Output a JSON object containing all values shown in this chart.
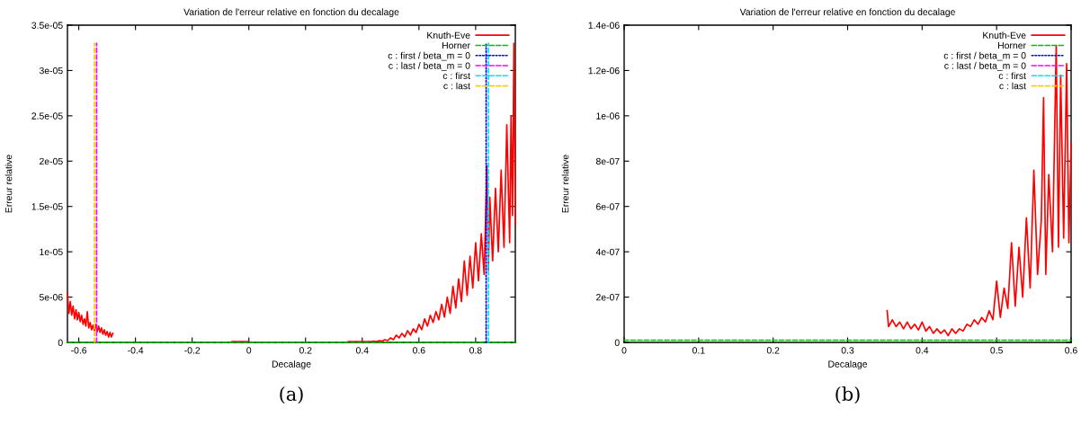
{
  "chart_data": [
    {
      "type": "line",
      "title": "Variation de l'erreur relative en fonction du decalage",
      "xlabel": "Decalage",
      "ylabel": "Erreur relative",
      "annotations": [
        "(a)"
      ],
      "legend": "top right",
      "grid": false,
      "xlim": [
        -0.64,
        0.94
      ],
      "xticks": [
        -0.6,
        -0.4,
        -0.2,
        0,
        0.2,
        0.4,
        0.6,
        0.8
      ],
      "ylim": [
        0,
        3.5e-05
      ],
      "yticks": [
        0,
        {
          "value": 5e-06,
          "label": "5e-06"
        },
        {
          "value": 1e-05,
          "label": "1e-05"
        },
        {
          "value": 1.5e-05,
          "label": "1.5e-05"
        },
        {
          "value": 2e-05,
          "label": "2e-05"
        },
        {
          "value": 2.5e-05,
          "label": "2.5e-05"
        },
        {
          "value": 3e-05,
          "label": "3e-05"
        },
        {
          "value": 3.5e-05,
          "label": "3.5e-05"
        }
      ],
      "series": [
        {
          "name": "Knuth-Eve",
          "color": "#ff0000",
          "line_style": "solid",
          "x": [
            -0.64,
            -0.635,
            -0.63,
            -0.625,
            -0.62,
            -0.615,
            -0.61,
            -0.605,
            -0.6,
            -0.595,
            -0.59,
            -0.585,
            -0.58,
            -0.575,
            -0.57,
            -0.565,
            -0.56,
            -0.555,
            -0.55,
            -0.545,
            -0.54,
            -0.535,
            -0.53,
            -0.525,
            -0.52,
            -0.515,
            -0.51,
            -0.505,
            -0.5,
            -0.495,
            -0.49,
            -0.485,
            -0.48,
            -0.47,
            -0.06,
            -0.04,
            -0.02,
            0,
            0.01,
            0.35,
            0.36,
            0.37,
            0.38,
            0.39,
            0.4,
            0.41,
            0.42,
            0.43,
            0.44,
            0.45,
            0.46,
            0.47,
            0.48,
            0.49,
            0.5,
            0.51,
            0.52,
            0.53,
            0.54,
            0.55,
            0.56,
            0.57,
            0.58,
            0.59,
            0.6,
            0.61,
            0.62,
            0.63,
            0.64,
            0.65,
            0.66,
            0.67,
            0.68,
            0.69,
            0.7,
            0.71,
            0.72,
            0.73,
            0.74,
            0.75,
            0.76,
            0.77,
            0.78,
            0.79,
            0.8,
            0.81,
            0.82,
            0.83,
            0.84,
            0.845,
            0.85,
            0.86,
            0.87,
            0.88,
            0.89,
            0.9,
            0.91,
            0.92,
            0.925,
            0.93,
            0.935,
            0.94
          ],
          "values": [
            5.5e-06,
            3.2e-06,
            4.5e-06,
            3e-06,
            4e-06,
            2.6e-06,
            3.6e-06,
            2.5e-06,
            3.3e-06,
            2.3e-06,
            3e-06,
            2e-06,
            2.6e-06,
            1.8e-06,
            3.4e-06,
            1.6e-06,
            2.2e-06,
            1.4e-06,
            1.9e-06,
            1.3e-06,
            2e-06,
            1.2e-06,
            1.8e-06,
            1.1e-06,
            1.6e-06,
            9e-07,
            1.4e-06,
            8e-07,
            1.2e-06,
            6e-07,
            1.1e-06,
            6e-07,
            1e-06,
            null,
            1e-07,
            1e-07,
            1e-07,
            1e-07,
            null,
            1e-07,
            1e-07,
            1e-07,
            1e-07,
            1e-07,
            1e-07,
            1e-07,
            1e-07,
            1e-07,
            1.5e-07,
            1e-07,
            2e-07,
            1.5e-07,
            3e-07,
            2e-07,
            5e-07,
            3e-07,
            8e-07,
            5e-07,
            1e-06,
            6e-07,
            1.3e-06,
            8e-07,
            1.5e-06,
            1.1e-06,
            2e-06,
            1.4e-06,
            2.6e-06,
            1.8e-06,
            3e-06,
            2.2e-06,
            3.4e-06,
            2.5e-06,
            4.2e-06,
            2.8e-06,
            5e-06,
            3.2e-06,
            6.2e-06,
            3.8e-06,
            7e-06,
            4.5e-06,
            9e-06,
            5.2e-06,
            9.5e-06,
            6e-06,
            1.1e-05,
            6.8e-06,
            1.2e-05,
            7.5e-06,
            1.95e-05,
            8e-06,
            1.6e-05,
            9e-06,
            1.7e-05,
            1e-05,
            1.9e-05,
            1.05e-05,
            2.4e-05,
            1.1e-05,
            2.5e-05,
            1.4e-05,
            3.3e-05,
            1.3e-05
          ]
        },
        {
          "name": "Horner",
          "color": "#00c000",
          "line_style": "dashed",
          "x": [
            -0.64,
            0.94
          ],
          "values": [
            0,
            0
          ]
        },
        {
          "name": "c : first / beta_m = 0",
          "color": "#0000ff",
          "line_style": "dotted",
          "x": [
            0.837,
            0.837
          ],
          "values": [
            0,
            3.3e-05
          ]
        },
        {
          "name": "c : last / beta_m = 0",
          "color": "#ff00ff",
          "line_style": "dashed",
          "x": [
            -0.537,
            -0.537
          ],
          "values": [
            0,
            3.3e-05
          ]
        },
        {
          "name": "c : first",
          "color": "#00e0ff",
          "line_style": "dashed",
          "x": [
            0.845,
            0.845
          ],
          "values": [
            0,
            3.3e-05
          ]
        },
        {
          "name": "c : last",
          "color": "#ffcc00",
          "line_style": "dashed",
          "x": [
            -0.545,
            -0.545
          ],
          "values": [
            0,
            3.3e-05
          ]
        }
      ]
    },
    {
      "type": "line",
      "title": "Variation de l'erreur relative en fonction du decalage",
      "xlabel": "Decalage",
      "ylabel": "Erreur relative",
      "annotations": [
        "(b)"
      ],
      "legend": "top right",
      "grid": false,
      "xlim": [
        0,
        0.6
      ],
      "xticks": [
        0,
        0.1,
        0.2,
        0.3,
        0.4,
        0.5,
        0.6
      ],
      "ylim": [
        0,
        1.4e-06
      ],
      "yticks": [
        0,
        {
          "value": 2e-07,
          "label": "2e-07"
        },
        {
          "value": 4e-07,
          "label": "4e-07"
        },
        {
          "value": 6e-07,
          "label": "6e-07"
        },
        {
          "value": 8e-07,
          "label": "8e-07"
        },
        {
          "value": 1e-06,
          "label": "1e-06"
        },
        {
          "value": 1.2e-06,
          "label": "1.2e-06"
        },
        {
          "value": 1.4e-06,
          "label": "1.4e-06"
        }
      ],
      "series": [
        {
          "name": "Knuth-Eve",
          "color": "#ff0000",
          "line_style": "solid",
          "x": [
            0.353,
            0.355,
            0.36,
            0.365,
            0.37,
            0.375,
            0.38,
            0.385,
            0.39,
            0.395,
            0.4,
            0.405,
            0.41,
            0.415,
            0.42,
            0.425,
            0.43,
            0.435,
            0.44,
            0.445,
            0.45,
            0.455,
            0.46,
            0.465,
            0.47,
            0.475,
            0.48,
            0.485,
            0.49,
            0.495,
            0.5,
            0.505,
            0.51,
            0.515,
            0.52,
            0.525,
            0.53,
            0.535,
            0.54,
            0.545,
            0.55,
            0.555,
            0.56,
            0.563,
            0.566,
            0.57,
            0.575,
            0.58,
            0.583,
            0.586,
            0.59,
            0.594,
            0.597,
            0.6
          ],
          "values": [
            1.4e-07,
            7e-08,
            1e-07,
            7e-08,
            9e-08,
            6e-08,
            9e-08,
            6e-08,
            8e-08,
            5.5e-08,
            9e-08,
            5e-08,
            7e-08,
            4e-08,
            6e-08,
            4e-08,
            5.5e-08,
            3e-08,
            6e-08,
            4e-08,
            6e-08,
            5e-08,
            8e-08,
            7e-08,
            1e-07,
            8e-08,
            1.1e-07,
            9e-08,
            1.4e-07,
            1e-07,
            2.7e-07,
            1.1e-07,
            2.4e-07,
            1.5e-07,
            4.4e-07,
            1.6e-07,
            4.2e-07,
            2e-07,
            5.5e-07,
            2.4e-07,
            7.6e-07,
            3e-07,
            5.4e-07,
            1.08e-06,
            3e-07,
            7.4e-07,
            4e-07,
            1.31e-06,
            4.2e-07,
            1.18e-06,
            4.6e-07,
            1.23e-06,
            4.4e-07,
            8.8e-07
          ]
        },
        {
          "name": "Horner",
          "color": "#00c000",
          "line_style": "dashed",
          "x": [
            0,
            0.6
          ],
          "values": [
            1e-08,
            1e-08
          ]
        },
        {
          "name": "c : first / beta_m = 0",
          "color": "#0000ff",
          "line_style": "dotted"
        },
        {
          "name": "c : last / beta_m = 0",
          "color": "#ff00ff",
          "line_style": "dashed"
        },
        {
          "name": "c : first",
          "color": "#00e0ff",
          "line_style": "dashed"
        },
        {
          "name": "c : last",
          "color": "#ffcc00",
          "line_style": "dashed"
        }
      ]
    }
  ]
}
